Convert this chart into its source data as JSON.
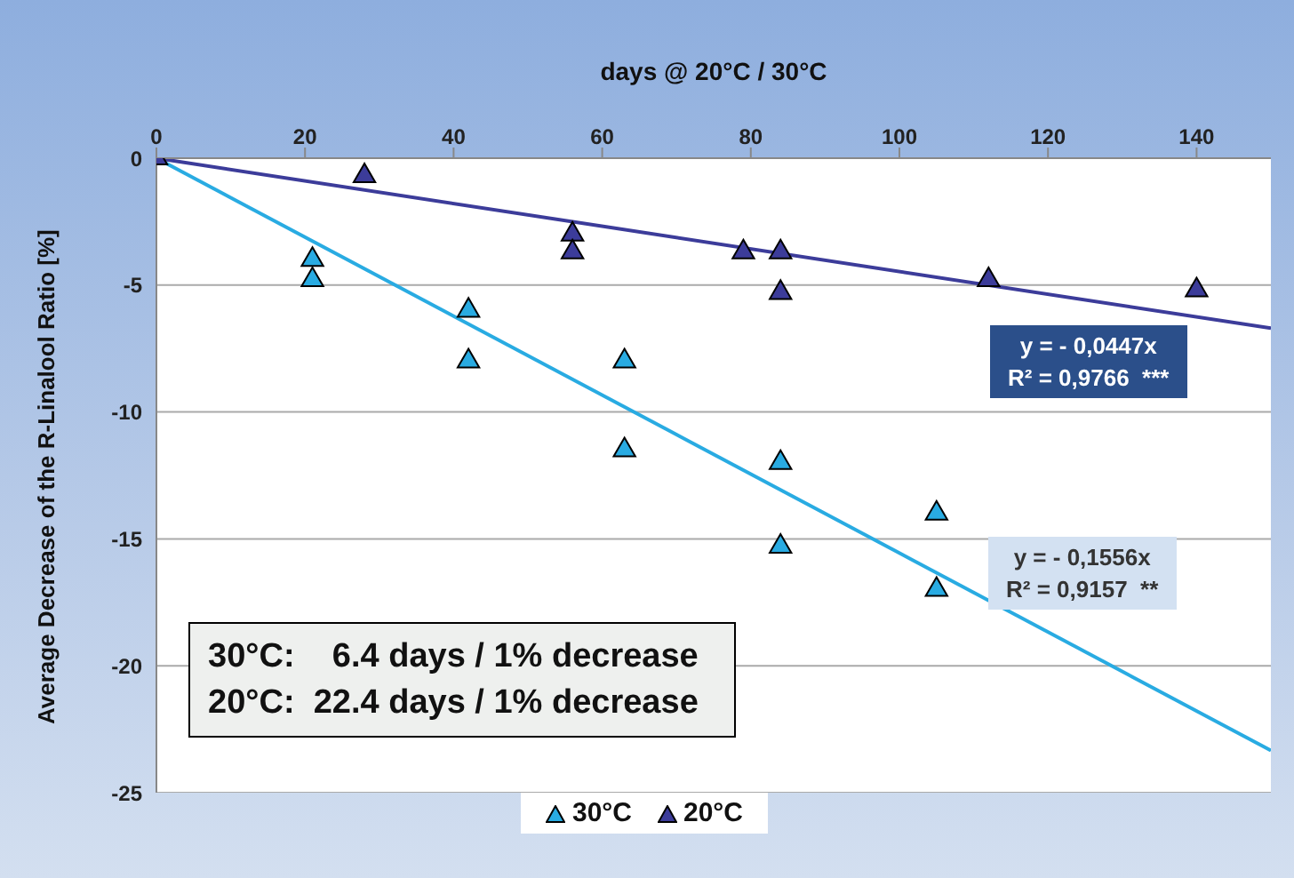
{
  "chart_data": {
    "type": "scatter",
    "xlabel": "days @ 20°C / 30°C",
    "ylabel": "Average Decrease of the R-Linalool Ratio [%]",
    "xlim": [
      0,
      150
    ],
    "xticks": [
      0,
      20,
      40,
      60,
      80,
      100,
      120,
      140
    ],
    "ylim": [
      -25,
      0
    ],
    "yticks": [
      -25,
      -20,
      -15,
      -10,
      -5,
      0
    ],
    "grid": "y",
    "legend": "bottom",
    "series": [
      {
        "name": "30°C",
        "color": "#29abe2",
        "marker": "triangle",
        "x": [
          21,
          21,
          42,
          42,
          63,
          63,
          84,
          84,
          105,
          105
        ],
        "values": [
          -4,
          -4.8,
          -6,
          -8,
          -8,
          -11.5,
          -12,
          -15.3,
          -14,
          -17
        ]
      },
      {
        "name": "20°C",
        "color": "#3c3c9a",
        "marker": "triangle",
        "x": [
          0,
          28,
          56,
          56,
          79,
          84,
          84,
          112,
          140
        ],
        "values": [
          0,
          -0.7,
          -3,
          -3.7,
          -3.7,
          -3.7,
          -5.3,
          -4.8,
          -5.2
        ]
      },
      {
        "type": "line",
        "color": "#29abe2",
        "x": [
          0,
          150
        ],
        "values": [
          0,
          -23.34
        ]
      },
      {
        "type": "line",
        "color": "#3c3c9a",
        "x": [
          0,
          150
        ],
        "values": [
          0,
          -6.7
        ]
      }
    ],
    "annotations": [
      "y = - 0,0447x\nR² = 0,9766  ***",
      "y = - 0,1556x\nR² = 0,9157  **",
      "30°C:    6.4 days / 1% decrease\n20°C:  22.4 days / 1% decrease"
    ]
  }
}
